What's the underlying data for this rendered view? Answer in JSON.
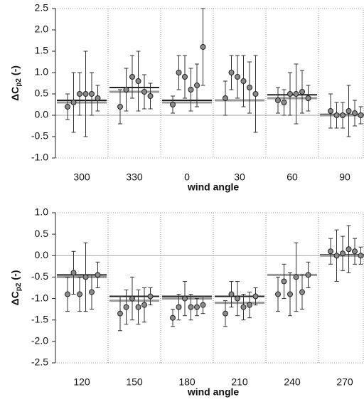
{
  "chart_data": [
    {
      "type": "errorbar",
      "xlabel": "wind angle",
      "ylabel": {
        "main": "ΔC",
        "sub": "p2",
        "unit": "(-)"
      },
      "ylim": [
        -1.0,
        2.5
      ],
      "yticks": [
        {
          "value": -1.0,
          "label": "-1.0"
        },
        -0.5,
        {
          "value": 0,
          "label": "0.0"
        },
        0.5,
        {
          "value": 1.0,
          "label": "1.0"
        },
        1.5,
        {
          "value": 2.0,
          "label": "2.0"
        },
        2.5
      ],
      "point_color": "#8a8a8a",
      "line_colors": [
        "#222222",
        "#999999"
      ],
      "categories": [
        "300",
        "330",
        "0",
        "30",
        "60",
        "90"
      ],
      "groups": [
        {
          "values": [
            0.2,
            0.3,
            0.5,
            0.5,
            0.5,
            0.4
          ],
          "errors": [
            0.3,
            0.7,
            0.5,
            1.0,
            0.5,
            0.3
          ],
          "lines": [
            0.35,
            0.3
          ]
        },
        {
          "values": [
            0.2,
            0.6,
            0.9,
            0.8,
            0.55,
            0.45
          ],
          "errors": [
            0.4,
            0.5,
            0.5,
            0.7,
            0.4,
            0.3
          ],
          "lines": [
            0.65,
            0.55
          ]
        },
        {
          "values": [
            0.25,
            1.0,
            0.9,
            0.6,
            0.7,
            1.6
          ],
          "errors": [
            0.2,
            0.4,
            0.5,
            0.5,
            0.5,
            0.9
          ],
          "lines": [
            0.35,
            0.3
          ]
        },
        {
          "values": [
            0.4,
            1.0,
            0.9,
            0.8,
            0.65,
            0.5
          ],
          "errors": [
            0.4,
            0.4,
            0.5,
            0.6,
            0.6,
            0.9
          ],
          "lines": [
            0.35,
            0.35
          ]
        },
        {
          "values": [
            0.35,
            0.3,
            0.5,
            0.5,
            0.55,
            0.4
          ],
          "errors": [
            0.3,
            0.3,
            0.5,
            0.7,
            0.5,
            0.3
          ],
          "lines": [
            0.48,
            0.4
          ]
        },
        {
          "values": [
            0.1,
            0.0,
            0.0,
            0.1,
            0.05,
            0.0
          ],
          "errors": [
            0.4,
            0.3,
            0.3,
            0.6,
            0.3,
            0.2
          ],
          "lines": [
            0.02,
            0.0
          ]
        }
      ]
    },
    {
      "type": "errorbar",
      "xlabel": "wind angle",
      "ylabel": {
        "main": "ΔC",
        "sub": "p2",
        "unit": "(-)"
      },
      "ylim": [
        -2.5,
        1.0
      ],
      "yticks": [
        -2.5,
        {
          "value": -2.0,
          "label": "-2.0"
        },
        -1.5,
        {
          "value": -1.0,
          "label": "-1.0"
        },
        -0.5,
        {
          "value": 0,
          "label": "0.0"
        },
        0.5,
        {
          "value": 1.0,
          "label": "1.0"
        }
      ],
      "point_color": "#8a8a8a",
      "line_colors": [
        "#222222",
        "#999999"
      ],
      "categories": [
        "120",
        "150",
        "180",
        "210",
        "240",
        "270"
      ],
      "groups": [
        {
          "values": [
            -0.9,
            -0.4,
            -0.9,
            -0.5,
            -0.85,
            -0.45
          ],
          "errors": [
            0.4,
            0.5,
            0.4,
            0.8,
            0.4,
            0.3
          ],
          "lines": [
            -0.45,
            -0.5
          ]
        },
        {
          "values": [
            -1.35,
            -1.2,
            -1.0,
            -1.2,
            -1.15,
            -0.95
          ],
          "errors": [
            0.4,
            0.4,
            0.5,
            0.4,
            0.4,
            0.2
          ],
          "lines": [
            -0.95,
            -1.05
          ]
        },
        {
          "values": [
            -1.45,
            -1.2,
            -1.0,
            -1.2,
            -1.2,
            -1.15
          ],
          "errors": [
            0.2,
            0.3,
            0.4,
            0.3,
            0.2,
            0.2
          ],
          "lines": [
            -0.95,
            -1.0
          ]
        },
        {
          "values": [
            -1.35,
            -0.9,
            -1.0,
            -1.2,
            -1.15,
            -0.95
          ],
          "errors": [
            0.3,
            0.3,
            0.4,
            0.3,
            0.3,
            0.2
          ],
          "lines": [
            -0.95,
            -1.1
          ]
        },
        {
          "values": [
            -0.9,
            -0.6,
            -0.9,
            -0.5,
            -0.85,
            -0.45
          ],
          "errors": [
            0.4,
            0.4,
            0.5,
            0.8,
            0.4,
            0.3
          ],
          "lines": [
            -0.45,
            -0.45
          ]
        },
        {
          "values": [
            0.1,
            0.0,
            0.05,
            0.15,
            0.1,
            0.0
          ],
          "errors": [
            0.3,
            0.6,
            0.4,
            0.55,
            0.3,
            0.2
          ],
          "lines": [
            0.02,
            0.0
          ]
        }
      ]
    }
  ]
}
